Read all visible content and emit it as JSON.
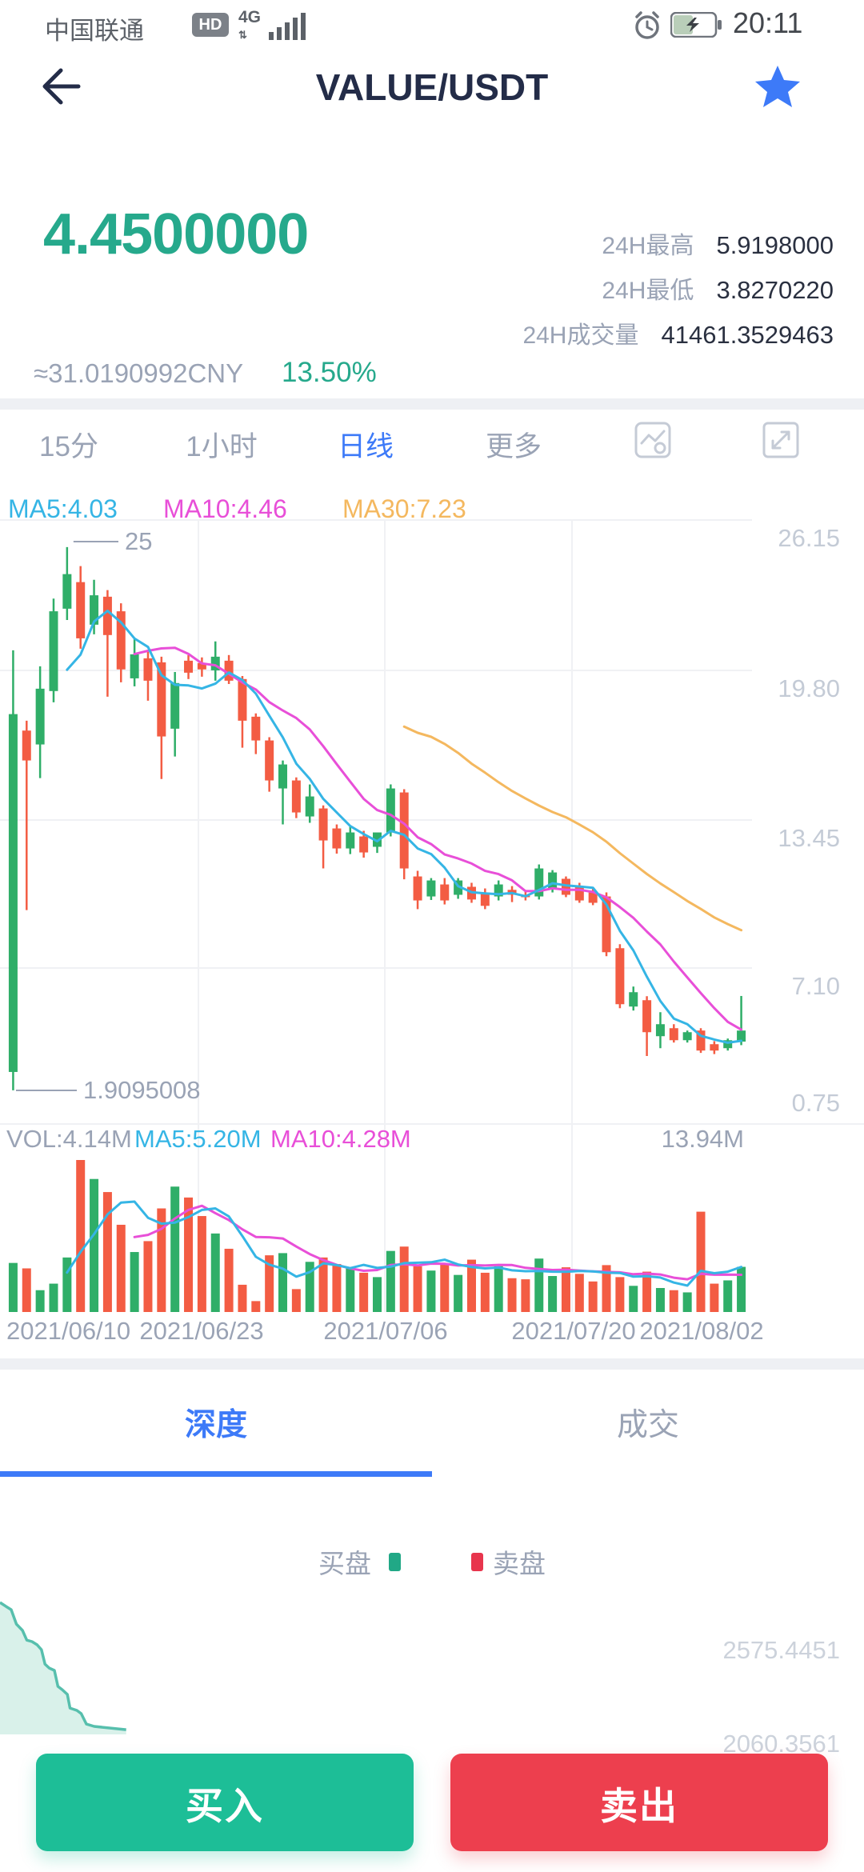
{
  "status_bar": {
    "carrier": "中国联通",
    "hd": "HD",
    "network": "4G",
    "time": "20:11"
  },
  "header": {
    "title": "VALUE/USDT"
  },
  "ticker": {
    "price": "4.4500000",
    "fiat": "≈31.0190992CNY",
    "change": "13.50%",
    "stats": [
      {
        "label": "24H最高",
        "value": "5.9198000"
      },
      {
        "label": "24H最低",
        "value": "3.8270220"
      },
      {
        "label": "24H成交量",
        "value": "41461.3529463"
      }
    ]
  },
  "toolbar": {
    "tabs": [
      {
        "label": "15分",
        "active": false
      },
      {
        "label": "1小时",
        "active": false
      },
      {
        "label": "日线",
        "active": true
      },
      {
        "label": "更多",
        "active": false
      }
    ],
    "icons": [
      "indicator-settings-icon",
      "fullscreen-icon"
    ]
  },
  "chart": {
    "ma_labels": [
      {
        "text": "MA5:4.03",
        "color": "#35b5e5"
      },
      {
        "text": "MA10:4.46",
        "color": "#e84fd8"
      },
      {
        "text": "MA30:7.23",
        "color": "#f4b85f"
      }
    ],
    "y_axis": [
      "26.15",
      "19.80",
      "13.45",
      "7.10",
      "0.75"
    ],
    "high_marker": "25",
    "low_marker": "1.9095008",
    "volume_labels": [
      {
        "text": "VOL:4.14M",
        "color": "#9aa3b5"
      },
      {
        "text": "MA5:5.20M",
        "color": "#35b5e5"
      },
      {
        "text": "MA10:4.28M",
        "color": "#e84fd8"
      }
    ],
    "volume_max": "13.94M",
    "x_axis": [
      "2021/06/10",
      "2021/06/23",
      "2021/07/06",
      "2021/07/20",
      "2021/08/02"
    ]
  },
  "chart_data": {
    "type": "candlestick",
    "title": "VALUE/USDT 日线 (daily)",
    "y_axis_ticks": [
      26.15,
      19.8,
      13.45,
      7.1,
      0.75
    ],
    "x_axis_labels": [
      "2021/06/10",
      "2021/06/23",
      "2021/07/06",
      "2021/07/20",
      "2021/08/02"
    ],
    "high_marker_value": 25,
    "low_marker_value": 1.9095008,
    "ma_values": {
      "MA5": 4.03,
      "MA10": 4.46,
      "MA30": 7.23
    },
    "volume_current": "4.14M",
    "volume_ma5": "5.20M",
    "volume_ma10": "4.28M",
    "volume_axis_max_millions": 13.94,
    "ohlc_order": [
      "open",
      "high",
      "low",
      "close"
    ],
    "candles": [
      [
        2.69,
        20.61,
        1.9095,
        17.9
      ],
      [
        17.2,
        17.62,
        9.57,
        15.93
      ],
      [
        16.61,
        19.93,
        15.18,
        18.98
      ],
      [
        18.88,
        22.81,
        18.4,
        22.27
      ],
      [
        22.38,
        25.0,
        21.9,
        23.85
      ],
      [
        23.51,
        24.19,
        20.68,
        21.12
      ],
      [
        21.7,
        23.61,
        21.29,
        22.95
      ],
      [
        22.89,
        23.17,
        18.64,
        21.26
      ],
      [
        22.27,
        22.61,
        19.25,
        19.8
      ],
      [
        19.42,
        21.09,
        19.08,
        20.44
      ],
      [
        20.27,
        20.61,
        18.47,
        19.32
      ],
      [
        20.1,
        20.34,
        15.14,
        16.95
      ],
      [
        17.28,
        19.69,
        16.1,
        19.22
      ],
      [
        20.17,
        20.41,
        19.39,
        19.66
      ],
      [
        20.07,
        20.31,
        19.49,
        19.8
      ],
      [
        19.76,
        20.99,
        19.32,
        20.34
      ],
      [
        20.17,
        20.41,
        19.18,
        19.32
      ],
      [
        19.39,
        19.52,
        16.47,
        17.62
      ],
      [
        17.79,
        17.93,
        16.2,
        16.78
      ],
      [
        16.78,
        16.92,
        14.6,
        15.08
      ],
      [
        14.74,
        15.93,
        13.21,
        15.76
      ],
      [
        15.08,
        15.21,
        13.48,
        13.72
      ],
      [
        13.55,
        14.91,
        13.28,
        14.4
      ],
      [
        13.89,
        14.02,
        11.34,
        12.53
      ],
      [
        13.04,
        13.21,
        11.97,
        12.19
      ],
      [
        12.19,
        13.11,
        11.95,
        12.87
      ],
      [
        12.7,
        12.94,
        11.8,
        12.02
      ],
      [
        12.26,
        12.63,
        12.0,
        12.87
      ],
      [
        12.87,
        14.91,
        12.7,
        14.74
      ],
      [
        14.57,
        14.71,
        10.88,
        11.34
      ],
      [
        11.0,
        11.24,
        9.61,
        9.98
      ],
      [
        10.15,
        10.93,
        10.0,
        10.83
      ],
      [
        10.66,
        10.93,
        9.81,
        9.98
      ],
      [
        10.22,
        10.93,
        10.05,
        10.83
      ],
      [
        10.56,
        10.73,
        9.88,
        10.02
      ],
      [
        10.32,
        10.49,
        9.61,
        9.75
      ],
      [
        10.15,
        10.83,
        9.98,
        10.66
      ],
      [
        10.43,
        10.59,
        9.91,
        10.22
      ],
      [
        10.22,
        10.39,
        9.98,
        10.15
      ],
      [
        10.15,
        11.51,
        10.02,
        11.34
      ],
      [
        10.49,
        11.27,
        10.32,
        11.17
      ],
      [
        10.9,
        11.0,
        10.12,
        10.22
      ],
      [
        10.56,
        10.73,
        9.88,
        9.98
      ],
      [
        10.32,
        10.49,
        9.78,
        9.88
      ],
      [
        10.15,
        10.32,
        7.61,
        7.78
      ],
      [
        7.95,
        8.12,
        5.4,
        5.57
      ],
      [
        5.47,
        6.32,
        5.3,
        6.08
      ],
      [
        5.74,
        5.91,
        3.37,
        4.38
      ],
      [
        4.21,
        5.23,
        3.7,
        4.72
      ],
      [
        4.55,
        4.72,
        3.94,
        4.04
      ],
      [
        4.04,
        4.45,
        3.94,
        4.38
      ],
      [
        4.45,
        4.55,
        3.5,
        3.6
      ],
      [
        3.87,
        4.0,
        3.45,
        3.6
      ],
      [
        3.7,
        4.11,
        3.6,
        4.04
      ],
      [
        3.98,
        5.92,
        3.83,
        4.45
      ]
    ],
    "volumes_millions": [
      4.5,
      4.0,
      2.0,
      2.6,
      5.0,
      13.94,
      12.2,
      11.0,
      8.0,
      5.5,
      6.5,
      9.5,
      11.5,
      10.5,
      8.8,
      7.2,
      5.8,
      2.5,
      1.0,
      5.2,
      5.4,
      2.1,
      4.6,
      5.0,
      4.4,
      4.0,
      3.6,
      3.2,
      5.6,
      6.0,
      4.2,
      3.8,
      4.4,
      3.4,
      4.8,
      3.6,
      4.2,
      3.1,
      3.0,
      4.9,
      3.3,
      4.1,
      3.5,
      2.8,
      4.3,
      3.2,
      2.4,
      3.7,
      2.2,
      2.0,
      1.8,
      9.2,
      2.6,
      2.9,
      4.14
    ],
    "depth": {
      "legend": {
        "bids": "买盘",
        "asks": "卖盘"
      },
      "y_ticks": [
        2575.4451,
        2060.3561
      ],
      "bids": [
        [
          0.0,
          2837
        ],
        [
          0.007,
          2815
        ],
        [
          0.013,
          2797
        ],
        [
          0.019,
          2717
        ],
        [
          0.026,
          2682
        ],
        [
          0.031,
          2628
        ],
        [
          0.037,
          2620
        ],
        [
          0.043,
          2602
        ],
        [
          0.048,
          2575
        ],
        [
          0.052,
          2495
        ],
        [
          0.057,
          2473
        ],
        [
          0.063,
          2460
        ],
        [
          0.067,
          2371
        ],
        [
          0.072,
          2353
        ],
        [
          0.078,
          2327
        ],
        [
          0.081,
          2251
        ],
        [
          0.089,
          2238
        ],
        [
          0.094,
          2220
        ],
        [
          0.1,
          2162
        ],
        [
          0.109,
          2149
        ],
        [
          0.146,
          2131
        ]
      ],
      "asks": []
    }
  },
  "tabs2": {
    "depth": "深度",
    "trades": "成交"
  },
  "depth_axis": [
    "2575.4451",
    "2060.3561"
  ],
  "buttons": {
    "buy": "买入",
    "sell": "卖出"
  },
  "colors": {
    "up": "#2fae68",
    "down": "#f35c43",
    "accent_blue": "#3d7af8",
    "price_teal": "#26a98c",
    "ma5": "#35b5e5",
    "ma10": "#e84fd8",
    "ma30": "#f4b85f",
    "buy_button": "#1dbe97",
    "sell_button": "#ed3f4e",
    "depth_fill": "#d9f1ea",
    "depth_line": "#57bfad",
    "grid": "#f0f1f4"
  }
}
